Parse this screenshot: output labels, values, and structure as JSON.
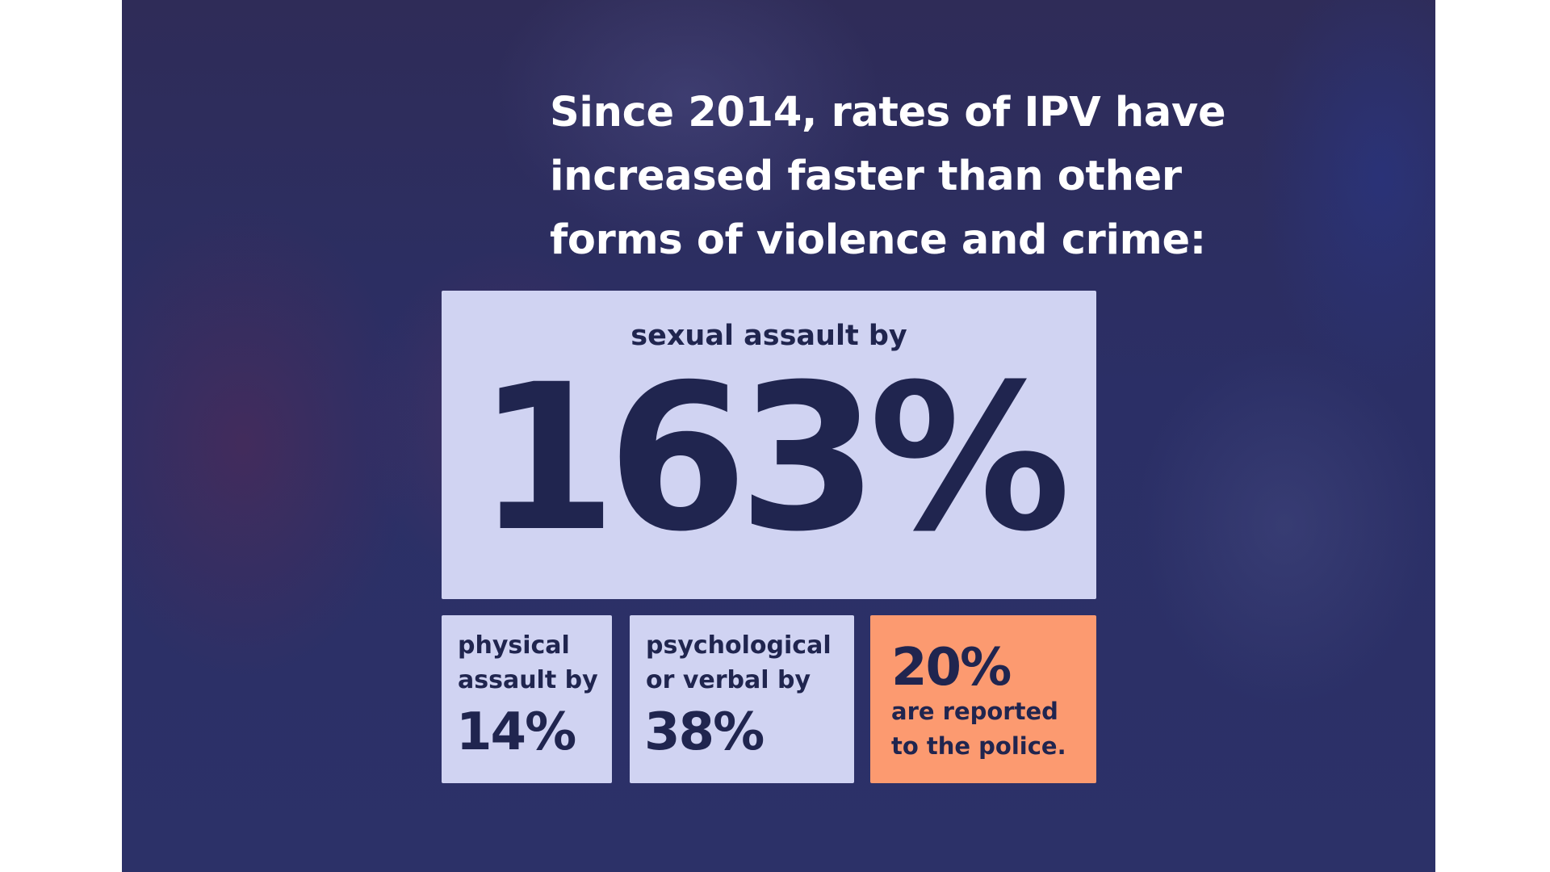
{
  "heading": {
    "lines": [
      "Since 2014, rates of IPV have",
      "increased faster than other",
      "forms of violence and crime:"
    ]
  },
  "main_stat": {
    "label": "sexual assault by",
    "value": "163%"
  },
  "stats": [
    {
      "label_lines": [
        "physical",
        "assault by"
      ],
      "value": "14%"
    },
    {
      "label_lines": [
        "psychological",
        "or verbal by"
      ],
      "value": "38%"
    }
  ],
  "reported": {
    "value": "20%",
    "label_lines": [
      "are reported",
      "to the police."
    ]
  },
  "colors": {
    "background": "#2c3168",
    "box_light": "#d0d3f2",
    "box_accent": "#fc9a70",
    "text_dark": "#20254f",
    "text_light": "#ffffff"
  }
}
